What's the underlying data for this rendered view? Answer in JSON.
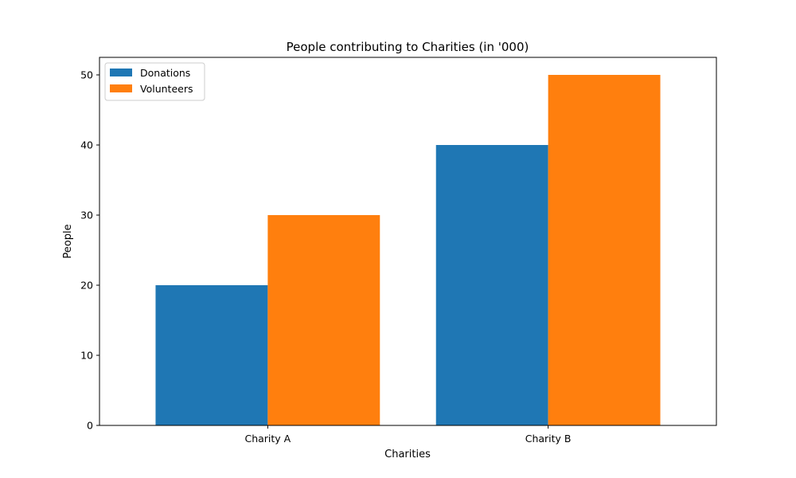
{
  "chart_data": {
    "type": "bar",
    "title": "People contributing to Charities (in '000)",
    "xlabel": "Charities",
    "ylabel": "People",
    "categories": [
      "Charity A",
      "Charity B"
    ],
    "series": [
      {
        "name": "Donations",
        "values": [
          20,
          40
        ],
        "color": "#1f77b4"
      },
      {
        "name": "Volunteers",
        "values": [
          30,
          50
        ],
        "color": "#ff7f0e"
      }
    ],
    "ylim": [
      0,
      52.5
    ],
    "yticks": [
      0,
      10,
      20,
      30,
      40,
      50
    ],
    "grid": false,
    "legend": "top-left"
  }
}
